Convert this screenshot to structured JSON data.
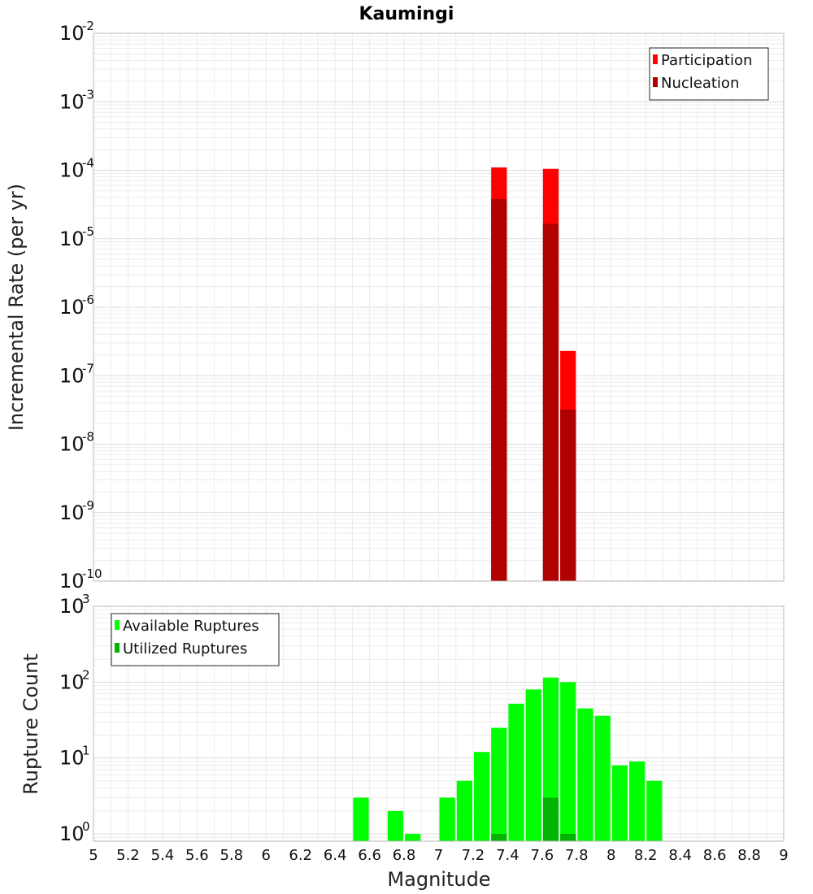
{
  "chart_data": [
    {
      "type": "bar",
      "title": "Kaumingi",
      "xlabel": "",
      "ylabel": "Incremental Rate (per yr)",
      "yscale": "log",
      "ylim": [
        1e-10,
        0.01
      ],
      "xlim": [
        5,
        9
      ],
      "bin_width": 0.1,
      "grid": true,
      "legend_placement": "top-right",
      "y_tick_exponents": [
        -10,
        -9,
        -8,
        -7,
        -6,
        -5,
        -4,
        -3,
        -2
      ],
      "series": [
        {
          "name": "Participation",
          "color": "#ff0000",
          "points": [
            {
              "x": 7.35,
              "y": 0.00011
            },
            {
              "x": 7.65,
              "y": 0.000105
            },
            {
              "x": 7.75,
              "y": 2.3e-07
            }
          ]
        },
        {
          "name": "Nucleation",
          "color": "#b00000",
          "points": [
            {
              "x": 7.35,
              "y": 3.8e-05
            },
            {
              "x": 7.65,
              "y": 1.65e-05
            },
            {
              "x": 7.75,
              "y": 3.2e-08
            }
          ]
        }
      ]
    },
    {
      "type": "bar",
      "title": "",
      "xlabel": "Magnitude",
      "ylabel": "Rupture Count",
      "yscale": "log",
      "ylim": [
        0.8,
        1000
      ],
      "xlim": [
        5,
        9
      ],
      "bin_width": 0.1,
      "grid": true,
      "legend_placement": "top-left",
      "y_tick_exponents": [
        0,
        1,
        2,
        3
      ],
      "x_ticks": [
        "5",
        "5.2",
        "5.4",
        "5.6",
        "5.8",
        "6",
        "6.2",
        "6.4",
        "6.6",
        "6.8",
        "7",
        "7.2",
        "7.4",
        "7.6",
        "7.8",
        "8",
        "8.2",
        "8.4",
        "8.6",
        "8.8",
        "9"
      ],
      "series": [
        {
          "name": "Available Ruptures",
          "color": "#00ff00",
          "points": [
            {
              "x": 6.55,
              "y": 3
            },
            {
              "x": 6.75,
              "y": 2
            },
            {
              "x": 6.85,
              "y": 1
            },
            {
              "x": 7.05,
              "y": 3
            },
            {
              "x": 7.15,
              "y": 5
            },
            {
              "x": 7.25,
              "y": 12
            },
            {
              "x": 7.35,
              "y": 25
            },
            {
              "x": 7.45,
              "y": 52
            },
            {
              "x": 7.55,
              "y": 80
            },
            {
              "x": 7.65,
              "y": 115
            },
            {
              "x": 7.75,
              "y": 100
            },
            {
              "x": 7.85,
              "y": 45
            },
            {
              "x": 7.95,
              "y": 36
            },
            {
              "x": 8.05,
              "y": 8
            },
            {
              "x": 8.15,
              "y": 9
            },
            {
              "x": 8.25,
              "y": 5
            }
          ]
        },
        {
          "name": "Utilized Ruptures",
          "color": "#00b400",
          "points": [
            {
              "x": 7.35,
              "y": 1
            },
            {
              "x": 7.65,
              "y": 3
            },
            {
              "x": 7.75,
              "y": 1
            }
          ]
        }
      ]
    }
  ]
}
